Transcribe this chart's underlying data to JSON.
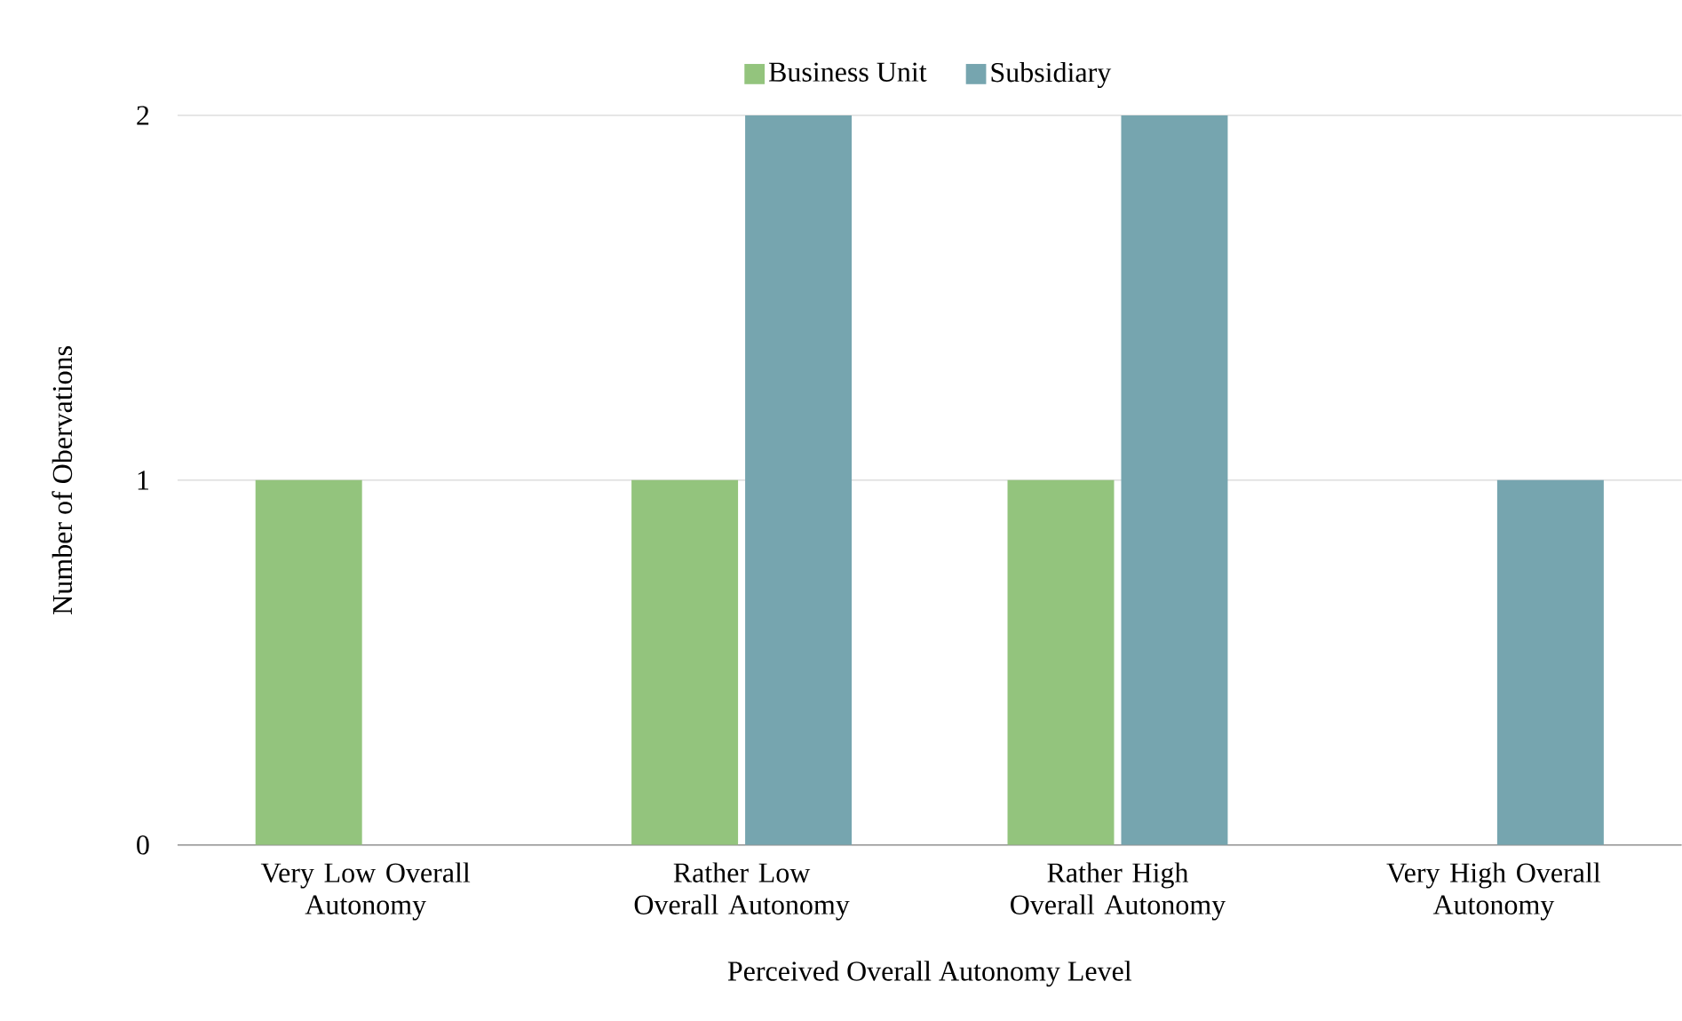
{
  "chart_data": {
    "type": "bar",
    "xlabel": "Perceived Overall Autonomy Level",
    "ylabel": "Number of Obervations",
    "categories": [
      "Very Low Overall Autonomy",
      "Rather Low Overall Autonomy",
      "Rather High Overall Autonomy",
      "Very High Overall Autonomy"
    ],
    "series": [
      {
        "name": "Business Unit",
        "color": "#93c47d",
        "values": [
          1,
          1,
          1,
          0
        ]
      },
      {
        "name": "Subsidiary",
        "color": "#76a5af",
        "values": [
          0,
          2,
          2,
          1
        ]
      }
    ],
    "ylim": [
      0,
      2
    ],
    "yticks": [
      0,
      1,
      2
    ],
    "grid": "y",
    "legend": "top"
  }
}
